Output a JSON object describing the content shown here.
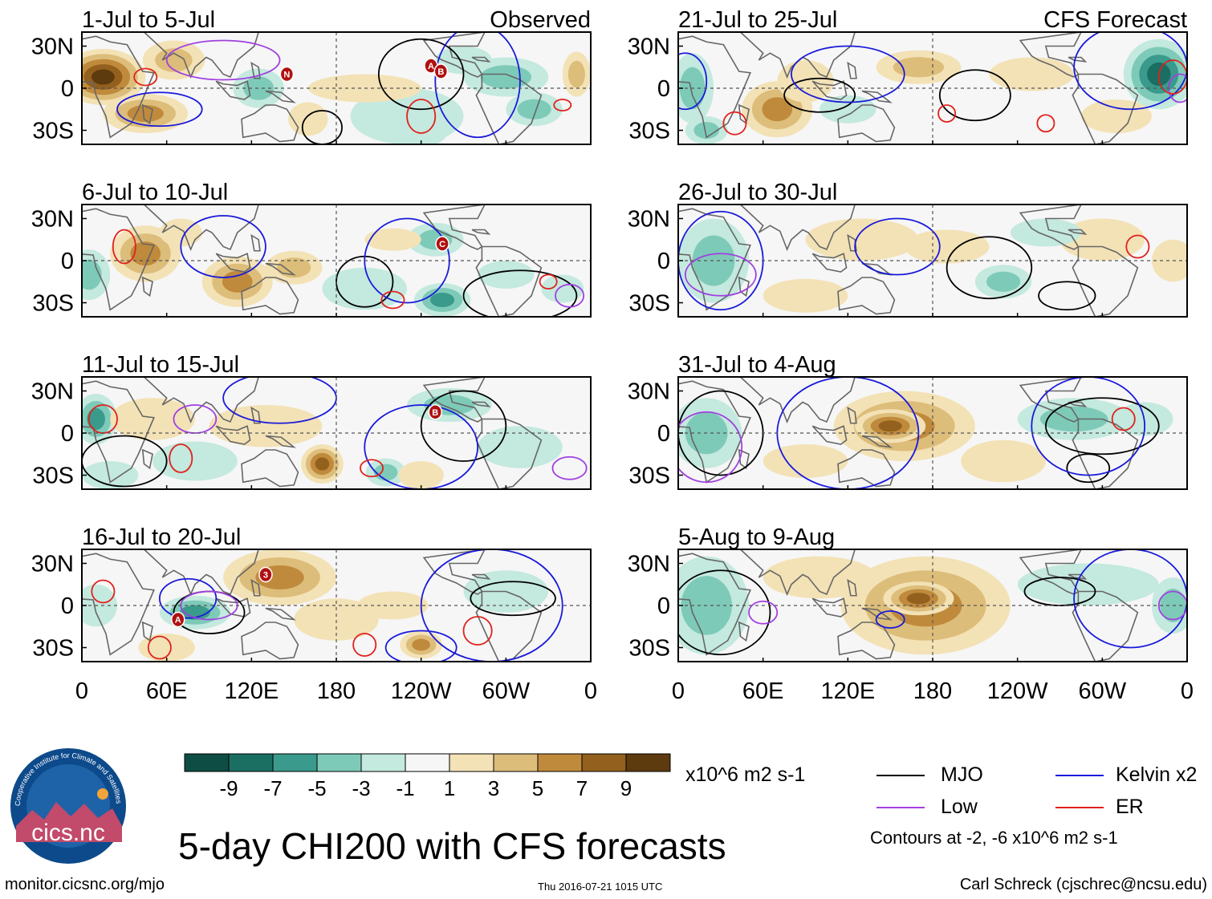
{
  "title": "5-day CHI200 with CFS forecasts",
  "credit_left": "monitor.cicsnc.org/mjo",
  "timestamp": "Thu 2016-07-21 1015 UTC",
  "credit_right": "Carl Schreck (cjschrec@ncsu.edu)",
  "logo": {
    "text": "cics.nc",
    "ring_text": "Cooperative Institute for Climate and Satellites"
  },
  "legend": {
    "units": "x10^6 m2 s-1",
    "contour_note": "Contours at -2, -6 x10^6 m2 s-1",
    "lines": [
      {
        "name": "MJO",
        "color": "#000000"
      },
      {
        "name": "Kelvin x2",
        "color": "#1a1adb"
      },
      {
        "name": "Low",
        "color": "#a040e0"
      },
      {
        "name": "ER",
        "color": "#e0211d"
      }
    ]
  },
  "chart_data": {
    "type": "heatmap",
    "variable": "CHI200 anomaly",
    "colorbar": {
      "tick_labels": [
        "-9",
        "-7",
        "-5",
        "-3",
        "-1",
        "1",
        "3",
        "5",
        "7",
        "9"
      ],
      "colors": [
        "#0e4d44",
        "#1b6e62",
        "#3a9a8b",
        "#7ecab8",
        "#c4e9df",
        "#f6f6f6",
        "#f3e2b6",
        "#ddbd7a",
        "#c08a3c",
        "#93601e",
        "#5e3a0f"
      ]
    },
    "x_ticks": [
      "0",
      "60E",
      "120E",
      "180",
      "120W",
      "60W",
      "0"
    ],
    "y_ticks": [
      "30N",
      "0",
      "30S"
    ],
    "lat_range": [
      -40,
      40
    ],
    "lon_range": [
      0,
      360
    ],
    "column_headers": {
      "left": "Observed",
      "right": "CFS Forecast"
    },
    "panels": [
      {
        "period": "1-Jul to 5-Jul",
        "column": "left",
        "row": 0,
        "blobs": [
          [
            15,
            8,
            30,
            20,
            10
          ],
          [
            45,
            -18,
            30,
            14,
            7
          ],
          [
            65,
            20,
            22,
            14,
            4
          ],
          [
            125,
            0,
            18,
            14,
            -4
          ],
          [
            160,
            -22,
            14,
            12,
            3
          ],
          [
            240,
            -28,
            20,
            14,
            -8
          ],
          [
            230,
            -20,
            40,
            20,
            -3
          ],
          [
            300,
            8,
            30,
            14,
            -4
          ],
          [
            320,
            -15,
            20,
            12,
            -5
          ],
          [
            270,
            20,
            20,
            10,
            -2
          ],
          [
            350,
            10,
            10,
            16,
            5
          ],
          [
            200,
            0,
            40,
            10,
            2
          ]
        ],
        "storms": [
          [
            "N",
            145,
            10
          ],
          [
            "A",
            247,
            16
          ],
          [
            "B",
            254,
            12
          ]
        ],
        "contours": {
          "MJO": [
            [
              170,
              -28,
              14,
              12
            ],
            [
              240,
              10,
              30,
              25
            ]
          ],
          "Kelvin x2": [
            [
              280,
              5,
              30,
              40
            ],
            [
              55,
              -15,
              30,
              12
            ]
          ],
          "Low": [
            [
              100,
              20,
              40,
              14
            ]
          ],
          "ER": [
            [
              45,
              8,
              8,
              6
            ],
            [
              240,
              -20,
              10,
              12
            ],
            [
              340,
              -12,
              6,
              4
            ]
          ]
        }
      },
      {
        "period": "6-Jul to 10-Jul",
        "column": "left",
        "row": 1,
        "blobs": [
          [
            45,
            5,
            25,
            20,
            6
          ],
          [
            110,
            -15,
            25,
            18,
            6
          ],
          [
            150,
            -5,
            20,
            12,
            5
          ],
          [
            70,
            20,
            15,
            10,
            3
          ],
          [
            5,
            -10,
            15,
            18,
            -4
          ],
          [
            200,
            -20,
            30,
            15,
            -3
          ],
          [
            255,
            -28,
            20,
            12,
            -7
          ],
          [
            250,
            15,
            20,
            12,
            -5
          ],
          [
            300,
            -10,
            20,
            10,
            -2
          ],
          [
            340,
            -20,
            15,
            10,
            -3
          ],
          [
            220,
            15,
            20,
            8,
            2
          ]
        ],
        "storms": [
          [
            "C",
            255,
            12
          ]
        ],
        "contours": {
          "MJO": [
            [
              200,
              -15,
              20,
              18
            ],
            [
              310,
              -25,
              40,
              18
            ]
          ],
          "Kelvin x2": [
            [
              100,
              10,
              30,
              22
            ],
            [
              230,
              0,
              30,
              30
            ]
          ],
          "Low": [
            [
              345,
              -25,
              10,
              8
            ]
          ],
          "ER": [
            [
              30,
              10,
              8,
              12
            ],
            [
              220,
              -28,
              8,
              6
            ],
            [
              330,
              -15,
              6,
              5
            ]
          ]
        }
      },
      {
        "period": "11-Jul to 15-Jul",
        "column": "left",
        "row": 2,
        "blobs": [
          [
            10,
            10,
            15,
            18,
            -7
          ],
          [
            50,
            10,
            30,
            15,
            2
          ],
          [
            130,
            5,
            40,
            15,
            3
          ],
          [
            170,
            -22,
            15,
            14,
            8
          ],
          [
            215,
            -28,
            14,
            10,
            -4
          ],
          [
            240,
            -30,
            16,
            10,
            3
          ],
          [
            260,
            20,
            30,
            12,
            -4
          ],
          [
            310,
            -10,
            30,
            15,
            -3
          ],
          [
            80,
            -20,
            30,
            14,
            -3
          ],
          [
            20,
            -30,
            20,
            10,
            -2
          ]
        ],
        "storms": [
          [
            "B",
            250,
            15
          ]
        ],
        "contours": {
          "MJO": [
            [
              30,
              -20,
              30,
              18
            ],
            [
              270,
              5,
              30,
              25
            ]
          ],
          "Kelvin x2": [
            [
              140,
              25,
              40,
              18
            ],
            [
              240,
              -10,
              40,
              30
            ]
          ],
          "Low": [
            [
              80,
              10,
              15,
              10
            ],
            [
              345,
              -25,
              12,
              8
            ]
          ],
          "ER": [
            [
              15,
              10,
              10,
              10
            ],
            [
              70,
              -18,
              8,
              10
            ],
            [
              205,
              -25,
              8,
              6
            ]
          ]
        }
      },
      {
        "period": "16-Jul to 20-Jul",
        "column": "left",
        "row": 3,
        "blobs": [
          [
            140,
            20,
            40,
            20,
            7
          ],
          [
            180,
            -10,
            30,
            15,
            3
          ],
          [
            240,
            -28,
            15,
            10,
            7
          ],
          [
            80,
            -5,
            25,
            12,
            -7
          ],
          [
            10,
            0,
            15,
            15,
            -3
          ],
          [
            300,
            10,
            30,
            15,
            -3
          ],
          [
            220,
            0,
            25,
            10,
            3
          ],
          [
            60,
            -30,
            20,
            10,
            2
          ]
        ],
        "storms": [
          [
            "3",
            130,
            22
          ],
          [
            "A",
            68,
            -10
          ]
        ],
        "contours": {
          "MJO": [
            [
              90,
              -5,
              25,
              15
            ],
            [
              305,
              5,
              30,
              12
            ]
          ],
          "Kelvin x2": [
            [
              75,
              5,
              20,
              14
            ],
            [
              290,
              0,
              50,
              40
            ],
            [
              240,
              -30,
              25,
              12
            ]
          ],
          "Low": [
            [
              90,
              0,
              20,
              10
            ]
          ],
          "ER": [
            [
              15,
              10,
              8,
              8
            ],
            [
              55,
              -30,
              8,
              8
            ],
            [
              200,
              -28,
              8,
              8
            ],
            [
              280,
              -18,
              10,
              10
            ]
          ]
        }
      },
      {
        "period": "21-Jul to 25-Jul",
        "column": "right",
        "row": 0,
        "blobs": [
          [
            340,
            10,
            25,
            25,
            -8
          ],
          [
            10,
            0,
            15,
            25,
            -4
          ],
          [
            70,
            -15,
            25,
            20,
            6
          ],
          [
            90,
            5,
            20,
            15,
            3
          ],
          [
            170,
            15,
            30,
            12,
            4
          ],
          [
            250,
            10,
            30,
            12,
            2
          ],
          [
            310,
            -20,
            25,
            12,
            3
          ],
          [
            120,
            -15,
            20,
            10,
            -3
          ],
          [
            20,
            -30,
            15,
            10,
            -4
          ]
        ],
        "storms": [],
        "contours": {
          "MJO": [
            [
              100,
              -5,
              25,
              12
            ],
            [
              210,
              -5,
              25,
              18
            ]
          ],
          "Kelvin x2": [
            [
              120,
              10,
              40,
              20
            ],
            [
              320,
              15,
              40,
              30
            ],
            [
              5,
              5,
              15,
              20
            ]
          ],
          "Low": [
            [
              355,
              0,
              8,
              10
            ]
          ],
          "ER": [
            [
              40,
              -25,
              8,
              8
            ],
            [
              190,
              -18,
              6,
              6
            ],
            [
              260,
              -25,
              6,
              6
            ],
            [
              350,
              8,
              10,
              12
            ]
          ]
        }
      },
      {
        "period": "26-Jul to 30-Jul",
        "column": "right",
        "row": 1,
        "blobs": [
          [
            25,
            0,
            25,
            30,
            -5
          ],
          [
            130,
            15,
            40,
            15,
            3
          ],
          [
            190,
            10,
            30,
            12,
            3
          ],
          [
            230,
            -15,
            20,
            12,
            -4
          ],
          [
            300,
            15,
            30,
            15,
            2
          ],
          [
            350,
            0,
            15,
            15,
            3
          ],
          [
            90,
            -25,
            30,
            12,
            2
          ],
          [
            260,
            20,
            25,
            10,
            -2
          ]
        ],
        "storms": [],
        "contours": {
          "MJO": [
            [
              220,
              -5,
              30,
              22
            ],
            [
              275,
              -25,
              20,
              10
            ]
          ],
          "Kelvin x2": [
            [
              30,
              0,
              30,
              35
            ],
            [
              155,
              10,
              30,
              20
            ]
          ],
          "Low": [
            [
              30,
              -10,
              25,
              15
            ]
          ],
          "ER": [
            [
              325,
              10,
              8,
              8
            ]
          ]
        }
      },
      {
        "period": "31-Jul to 4-Aug",
        "column": "right",
        "row": 2,
        "blobs": [
          [
            160,
            5,
            50,
            25,
            6
          ],
          [
            150,
            5,
            25,
            12,
            8
          ],
          [
            20,
            0,
            25,
            25,
            -4
          ],
          [
            280,
            10,
            40,
            15,
            -4
          ],
          [
            330,
            10,
            20,
            12,
            -3
          ],
          [
            230,
            -20,
            30,
            15,
            2
          ],
          [
            90,
            -20,
            30,
            12,
            2
          ]
        ],
        "storms": [],
        "contours": {
          "MJO": [
            [
              30,
              0,
              30,
              30
            ],
            [
              300,
              5,
              40,
              20
            ],
            [
              290,
              -25,
              15,
              10
            ]
          ],
          "Kelvin x2": [
            [
              120,
              0,
              50,
              40
            ],
            [
              290,
              5,
              40,
              35
            ]
          ],
          "Low": [
            [
              20,
              -10,
              25,
              25
            ]
          ],
          "ER": [
            [
              315,
              10,
              8,
              8
            ]
          ]
        }
      },
      {
        "period": "5-Aug to 9-Aug",
        "column": "right",
        "row": 3,
        "blobs": [
          [
            175,
            0,
            60,
            35,
            6
          ],
          [
            170,
            5,
            25,
            12,
            8
          ],
          [
            20,
            0,
            30,
            35,
            -5
          ],
          [
            290,
            15,
            50,
            15,
            -3
          ],
          [
            350,
            0,
            15,
            20,
            -4
          ],
          [
            100,
            20,
            40,
            15,
            2
          ]
        ],
        "storms": [],
        "contours": {
          "MJO": [
            [
              30,
              -5,
              35,
              30
            ],
            [
              270,
              10,
              25,
              10
            ]
          ],
          "Kelvin x2": [
            [
              320,
              5,
              40,
              35
            ],
            [
              150,
              -10,
              10,
              6
            ]
          ],
          "Low": [
            [
              60,
              -5,
              10,
              8
            ],
            [
              350,
              0,
              10,
              10
            ]
          ],
          "ER": []
        }
      }
    ]
  }
}
